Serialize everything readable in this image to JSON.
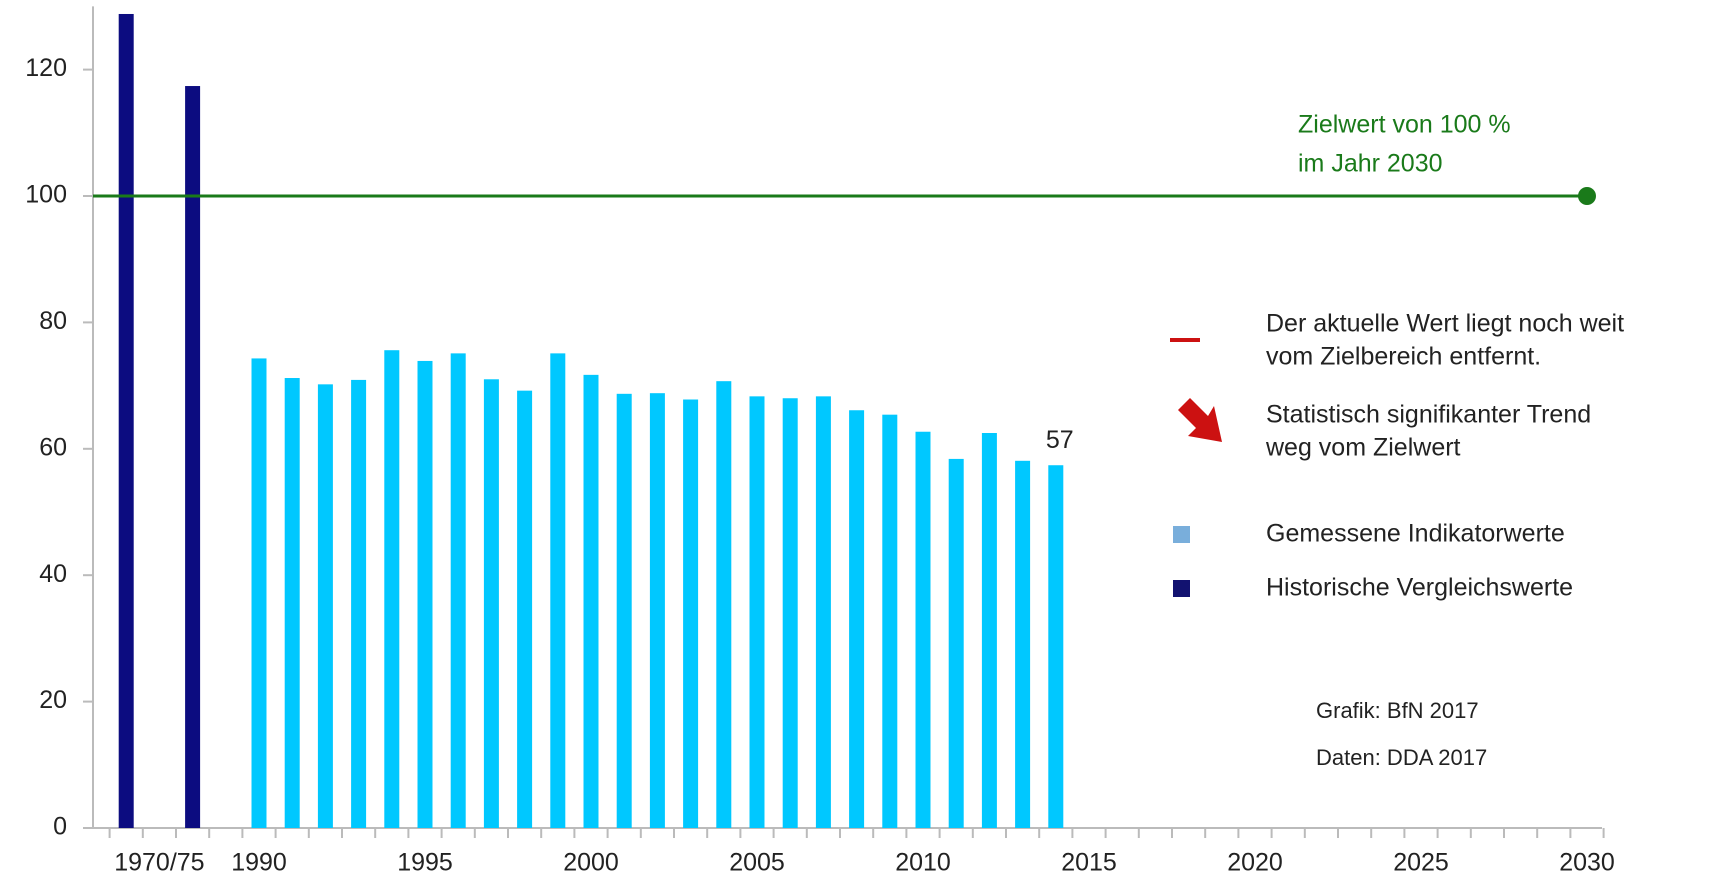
{
  "chart_data": {
    "type": "bar",
    "categories": [
      null,
      "1970/75",
      null,
      null,
      "1990",
      null,
      null,
      null,
      null,
      "1995",
      null,
      null,
      null,
      null,
      "2000",
      null,
      null,
      null,
      null,
      "2005",
      null,
      null,
      null,
      null,
      "2010",
      null,
      null,
      null,
      null,
      "2015",
      null,
      null,
      null,
      null,
      "2020",
      null,
      null,
      null,
      null,
      "2025",
      null,
      null,
      null,
      null,
      "2030"
    ],
    "series": [
      {
        "name": "Gemessene Indikatorwerte",
        "color": "#00c8ff",
        "legend_color": "#79aedb",
        "values": [
          null,
          null,
          null,
          null,
          74.3,
          71.2,
          70.2,
          70.9,
          75.6,
          73.9,
          75.1,
          71.0,
          69.2,
          75.1,
          71.7,
          68.7,
          68.8,
          67.8,
          70.7,
          68.3,
          68.0,
          68.3,
          66.1,
          65.4,
          62.7,
          58.4,
          62.5,
          58.1,
          57.4,
          null,
          null,
          null,
          null,
          null,
          null,
          null,
          null,
          null,
          null,
          null,
          null,
          null,
          null,
          null,
          null
        ],
        "value_labels": [
          null,
          null,
          null,
          null,
          null,
          null,
          null,
          null,
          null,
          null,
          null,
          null,
          null,
          null,
          null,
          null,
          null,
          null,
          null,
          null,
          null,
          null,
          null,
          null,
          null,
          null,
          null,
          null,
          "57",
          null,
          null,
          null,
          null,
          null,
          null,
          null,
          null,
          null,
          null,
          null,
          null,
          null,
          null,
          null,
          null
        ]
      },
      {
        "name": "Historische Vergleichswerte",
        "color": "#0c0c80",
        "legend_color": "#121270",
        "values": [
          128.8,
          null,
          117.4,
          null,
          null,
          null,
          null,
          null,
          null,
          null,
          null,
          null,
          null,
          null,
          null,
          null,
          null,
          null,
          null,
          null,
          null,
          null,
          null,
          null,
          null,
          null,
          null,
          null,
          null,
          null,
          null,
          null,
          null,
          null,
          null,
          null,
          null,
          null,
          null,
          null,
          null,
          null,
          null,
          null,
          null
        ]
      }
    ],
    "target": {
      "value": 100,
      "color": "#1a7a1a",
      "label": [
        "Zielwert von 100 %",
        "im Jahr 2030"
      ]
    },
    "status": [
      {
        "text": [
          "Der aktuelle Wert liegt noch weit",
          "vom Zielbereich entfernt."
        ],
        "color": "#cc1111"
      },
      {
        "text": [
          "Statistisch signifikanter Trend",
          "weg vom Zielwert"
        ],
        "color": "#cc1111"
      }
    ],
    "credits": [
      "Grafik: BfN 2017",
      "Daten: DDA 2017"
    ],
    "ylim": [
      0,
      130
    ],
    "yticks": [
      0,
      20,
      40,
      60,
      80,
      100,
      120
    ],
    "grid": false
  }
}
